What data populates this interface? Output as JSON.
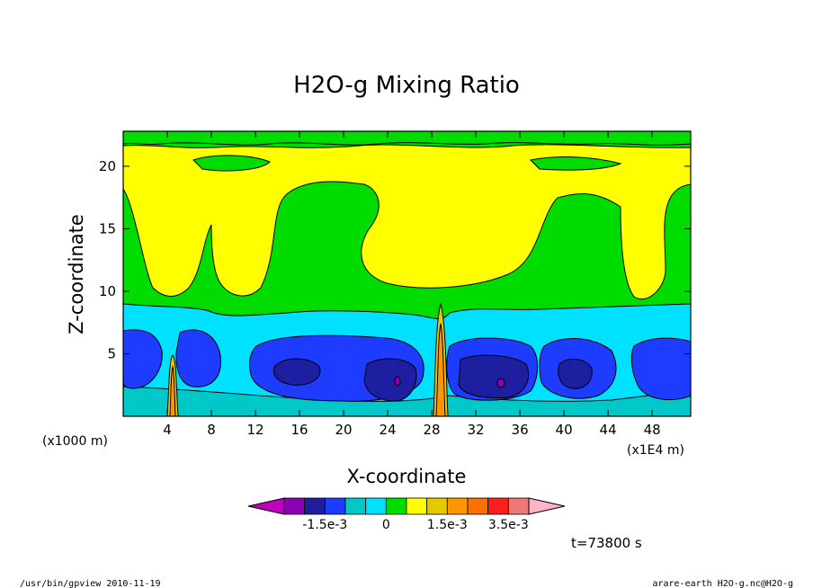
{
  "chart_data": {
    "type": "heatmap",
    "title": "H2O-g Mixing Ratio",
    "xlabel": "X-coordinate",
    "ylabel": "Z-coordinate",
    "x_scale_label": "(x1E4 m)",
    "y_scale_label": "(x1000 m)",
    "xlim": [
      0,
      51.5
    ],
    "ylim": [
      0,
      22.8
    ],
    "x_ticks": [
      4,
      8,
      12,
      16,
      20,
      24,
      28,
      32,
      36,
      40,
      44,
      48
    ],
    "y_ticks": [
      5,
      10,
      15,
      20
    ],
    "colorbar": {
      "colors": [
        "#bf00bf",
        "#8c00b4",
        "#1e1ea0",
        "#1e3cff",
        "#00c8c8",
        "#00e1ff",
        "#00dc00",
        "#ffff00",
        "#e6c800",
        "#ff9600",
        "#ff6e00",
        "#ff1e1e",
        "#f07878",
        "#ffb4c8"
      ],
      "labels": [
        "-1.5e-3",
        "0",
        "1.5e-3",
        "3.5e-3"
      ]
    },
    "time_label": "t=73800 s",
    "footer_left": "/usr/bin/gpview   2010-11-19",
    "footer_right": "arare-earth_H2O-g.nc@H2O-g"
  }
}
